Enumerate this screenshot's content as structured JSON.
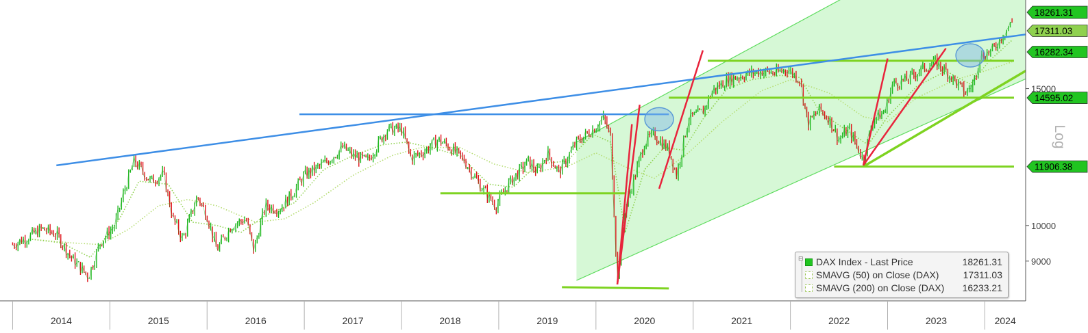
{
  "chart_data": {
    "type": "line",
    "scale": "log",
    "ylabel": "Log",
    "x_ticks": [
      "2014",
      "2015",
      "2016",
      "2017",
      "2018",
      "2019",
      "2020",
      "2021",
      "2022",
      "2023",
      "2024"
    ],
    "y_ticks": [
      9000,
      10000,
      15000
    ],
    "ylim": [
      8000,
      19500
    ],
    "series": [
      {
        "name": "DAX Index - Last Price",
        "color": "#21c521",
        "last": "18261.31",
        "points": [
          [
            2014.0,
            9450
          ],
          [
            2014.15,
            9650
          ],
          [
            2014.3,
            9900
          ],
          [
            2014.45,
            9750
          ],
          [
            2014.6,
            9100
          ],
          [
            2014.78,
            8600
          ],
          [
            2014.9,
            9500
          ],
          [
            2015.05,
            10000
          ],
          [
            2015.15,
            11100
          ],
          [
            2015.25,
            12100
          ],
          [
            2015.3,
            11900
          ],
          [
            2015.42,
            11400
          ],
          [
            2015.55,
            11650
          ],
          [
            2015.65,
            10200
          ],
          [
            2015.75,
            9600
          ],
          [
            2015.9,
            10900
          ],
          [
            2016.0,
            10300
          ],
          [
            2016.1,
            9300
          ],
          [
            2016.25,
            10000
          ],
          [
            2016.4,
            10200
          ],
          [
            2016.48,
            9300
          ],
          [
            2016.6,
            10600
          ],
          [
            2016.75,
            10500
          ],
          [
            2016.9,
            11100
          ],
          [
            2017.0,
            11600
          ],
          [
            2017.2,
            12000
          ],
          [
            2017.4,
            12600
          ],
          [
            2017.5,
            12300
          ],
          [
            2017.65,
            12100
          ],
          [
            2017.85,
            13300
          ],
          [
            2018.0,
            13300
          ],
          [
            2018.1,
            12200
          ],
          [
            2018.25,
            12500
          ],
          [
            2018.38,
            12900
          ],
          [
            2018.5,
            12600
          ],
          [
            2018.65,
            12100
          ],
          [
            2018.8,
            11300
          ],
          [
            2018.97,
            10600
          ],
          [
            2019.1,
            11300
          ],
          [
            2019.3,
            12100
          ],
          [
            2019.4,
            11700
          ],
          [
            2019.5,
            12400
          ],
          [
            2019.62,
            11700
          ],
          [
            2019.8,
            12800
          ],
          [
            2019.97,
            13300
          ],
          [
            2020.08,
            13750
          ],
          [
            2020.15,
            13000
          ],
          [
            2020.22,
            8500
          ],
          [
            2020.3,
            10500
          ],
          [
            2020.42,
            11800
          ],
          [
            2020.5,
            12800
          ],
          [
            2020.6,
            13100
          ],
          [
            2020.75,
            12500
          ],
          [
            2020.83,
            11600
          ],
          [
            2020.95,
            13700
          ],
          [
            2021.1,
            14000
          ],
          [
            2021.2,
            14900
          ],
          [
            2021.35,
            15400
          ],
          [
            2021.55,
            15650
          ],
          [
            2021.7,
            15800
          ],
          [
            2021.85,
            15700
          ],
          [
            2021.97,
            15900
          ],
          [
            2022.1,
            15400
          ],
          [
            2022.18,
            13500
          ],
          [
            2022.3,
            14100
          ],
          [
            2022.4,
            13700
          ],
          [
            2022.5,
            12900
          ],
          [
            2022.6,
            13300
          ],
          [
            2022.75,
            12150
          ],
          [
            2022.85,
            13700
          ],
          [
            2022.97,
            14000
          ],
          [
            2023.05,
            15200
          ],
          [
            2023.2,
            15400
          ],
          [
            2023.35,
            15900
          ],
          [
            2023.5,
            16200
          ],
          [
            2023.62,
            15700
          ],
          [
            2023.8,
            14800
          ],
          [
            2023.88,
            15200
          ],
          [
            2023.95,
            16500
          ],
          [
            2024.08,
            16800
          ],
          [
            2024.2,
            17700
          ],
          [
            2024.28,
            18261
          ]
        ]
      },
      {
        "name": "SMAVG (50)  on Close (DAX)",
        "color": "#8fd14f",
        "last": "17311.03",
        "points": [
          [
            2014.2,
            9600
          ],
          [
            2014.5,
            9500
          ],
          [
            2014.8,
            9100
          ],
          [
            2015.1,
            10200
          ],
          [
            2015.3,
            11400
          ],
          [
            2015.6,
            11300
          ],
          [
            2015.85,
            10100
          ],
          [
            2016.1,
            10000
          ],
          [
            2016.35,
            9800
          ],
          [
            2016.6,
            10300
          ],
          [
            2016.9,
            10700
          ],
          [
            2017.2,
            11800
          ],
          [
            2017.5,
            12300
          ],
          [
            2017.8,
            12700
          ],
          [
            2018.05,
            12800
          ],
          [
            2018.3,
            12600
          ],
          [
            2018.6,
            12300
          ],
          [
            2018.9,
            11300
          ],
          [
            2019.15,
            11200
          ],
          [
            2019.4,
            12000
          ],
          [
            2019.7,
            12100
          ],
          [
            2019.97,
            13100
          ],
          [
            2020.15,
            12800
          ],
          [
            2020.3,
            9800
          ],
          [
            2020.5,
            11800
          ],
          [
            2020.7,
            12600
          ],
          [
            2020.9,
            12500
          ],
          [
            2021.1,
            13700
          ],
          [
            2021.35,
            15000
          ],
          [
            2021.6,
            15400
          ],
          [
            2021.9,
            15600
          ],
          [
            2022.1,
            15500
          ],
          [
            2022.3,
            14000
          ],
          [
            2022.6,
            13200
          ],
          [
            2022.8,
            12700
          ],
          [
            2023.0,
            13800
          ],
          [
            2023.3,
            15100
          ],
          [
            2023.6,
            15800
          ],
          [
            2023.85,
            15200
          ],
          [
            2024.05,
            16300
          ],
          [
            2024.28,
            17311
          ]
        ]
      },
      {
        "name": "SMAVG (200)  on Close (DAX)",
        "color": "#b6dd73",
        "last": "16233.21",
        "points": [
          [
            2014.2,
            9600
          ],
          [
            2014.6,
            9500
          ],
          [
            2014.9,
            9450
          ],
          [
            2015.2,
            9900
          ],
          [
            2015.5,
            10600
          ],
          [
            2015.8,
            10800
          ],
          [
            2016.1,
            10600
          ],
          [
            2016.5,
            10100
          ],
          [
            2016.8,
            10200
          ],
          [
            2017.1,
            10700
          ],
          [
            2017.5,
            11600
          ],
          [
            2017.9,
            12300
          ],
          [
            2018.2,
            12600
          ],
          [
            2018.6,
            12600
          ],
          [
            2018.95,
            12000
          ],
          [
            2019.3,
            11700
          ],
          [
            2019.7,
            11900
          ],
          [
            2020.0,
            12400
          ],
          [
            2020.3,
            11900
          ],
          [
            2020.6,
            11500
          ],
          [
            2020.95,
            12400
          ],
          [
            2021.3,
            13600
          ],
          [
            2021.7,
            14900
          ],
          [
            2022.0,
            15400
          ],
          [
            2022.4,
            14800
          ],
          [
            2022.75,
            13800
          ],
          [
            2023.0,
            13600
          ],
          [
            2023.3,
            14600
          ],
          [
            2023.7,
            15400
          ],
          [
            2024.0,
            15800
          ],
          [
            2024.28,
            16233
          ]
        ]
      }
    ],
    "levels": [
      {
        "value": "17311.03",
        "color": "#8fd14f"
      },
      {
        "value": "16282.34",
        "color": "#21c521"
      },
      {
        "value": "14595.02",
        "color": "#21c521"
      },
      {
        "value": "11906.38",
        "color": "#21c521"
      }
    ],
    "annotations": {
      "channel": [
        {
          "x": 2019.8,
          "lower": 8500,
          "upper": 12800
        },
        {
          "x": 2024.6,
          "lower": 15800,
          "upper": 27000
        }
      ],
      "blue_resistance": [
        [
          2014.45,
          11950
        ],
        [
          2024.55,
          17700
        ]
      ],
      "blue_horizontal": [
        [
          2016.95,
          13900
        ],
        [
          2020.75,
          13900
        ]
      ],
      "green_horizontals": [
        {
          "x0": 2018.4,
          "x1": 2020.3,
          "y0": 11000,
          "y1": 11000
        },
        {
          "x0": 2019.65,
          "x1": 2020.75,
          "y0": 8330,
          "y1": 8300
        },
        {
          "x0": 2021.15,
          "x1": 2024.3,
          "y0": 16290,
          "y1": 16290
        },
        {
          "x0": 2020.75,
          "x1": 2024.3,
          "y0": 14600,
          "y1": 14600
        },
        {
          "x0": 2022.45,
          "x1": 2024.3,
          "y0": 11906,
          "y1": 11906
        }
      ],
      "green_trend": [
        [
          2022.75,
          11906
        ],
        [
          2024.6,
          16300
        ]
      ],
      "red_fans": [
        [
          [
            2020.22,
            8400
          ],
          [
            2020.37,
            13500
          ]
        ],
        [
          [
            2020.22,
            8400
          ],
          [
            2020.45,
            14300
          ]
        ],
        [
          [
            2020.65,
            11150
          ],
          [
            2021.1,
            16800
          ]
        ],
        [
          [
            2022.75,
            11950
          ],
          [
            2023.0,
            16400
          ]
        ],
        [
          [
            2022.75,
            11950
          ],
          [
            2023.6,
            16900
          ]
        ]
      ],
      "circles": [
        [
          2020.65,
          13700
        ],
        [
          2023.85,
          16550
        ]
      ]
    }
  },
  "legend": {
    "items": [
      {
        "label": "DAX Index - Last Price",
        "value": "18261.31"
      },
      {
        "label": "SMAVG (50)  on Close (DAX)",
        "value": "17311.03"
      },
      {
        "label": "SMAVG (200)  on Close (DAX)",
        "value": "16233.21"
      }
    ]
  }
}
